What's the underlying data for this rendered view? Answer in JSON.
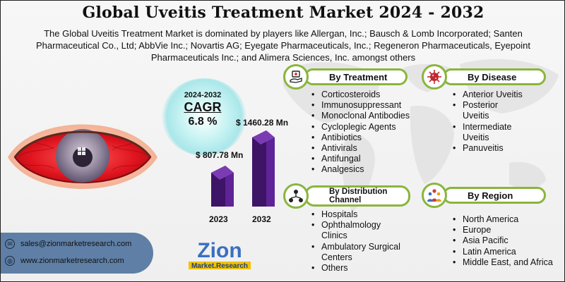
{
  "title": "Global Uveitis Treatment Market 2024 - 2032",
  "subtitle": "The Global Uveitis Treatment Market is dominated by players like Allergan, Inc.; Bausch & Lomb Incorporated; Santen Pharmaceutical Co., Ltd; AbbVie Inc.; Novartis AG; Eyegate Pharmaceuticals, Inc.; Regeneron Pharmaceuticals, Eyepoint Pharmaceuticals Inc.; and Alimera Sciences, Inc. amongst others",
  "cagr": {
    "years": "2024-2032",
    "label": "CAGR",
    "value": "6.8 %"
  },
  "market": {
    "value_2023": "$ 807.78 Mn",
    "value_2032": "$ 1460.28 Mn",
    "year_2023": "2023",
    "year_2032": "2032",
    "bar_colors": [
      "#4a1a7a",
      "#5e2396"
    ]
  },
  "contact": {
    "email": "sales@zionmarketresearch.com",
    "website": "www.zionmarketresearch.com"
  },
  "logo": {
    "line1": "Zion",
    "line2": "Market.Research"
  },
  "sections": {
    "treatment": {
      "title": "By Treatment",
      "items": [
        "Corticosteroids",
        "Immunosuppressant",
        "Monoclonal Antibodies",
        "Cycloplegic Agents",
        "Antibiotics",
        "Antivirals",
        "Antifungal",
        "Analgesics"
      ]
    },
    "disease": {
      "title": "By Disease",
      "items": [
        "Anterior Uveitis",
        "Posterior",
        "Uveitis",
        "Intermediate",
        "Uveitis",
        "Panuveitis"
      ]
    },
    "distribution": {
      "title_line1": "By Distribution",
      "title_line2": "Channel",
      "items": [
        "Hospitals",
        "Ophthalmology",
        "Clinics",
        "Ambulatory Surgical",
        "Centers",
        "Others"
      ]
    },
    "region": {
      "title": "By Region",
      "items": [
        "North America",
        "Europe",
        "Asia Pacific",
        "Latin America",
        "Middle East, and Africa"
      ]
    }
  },
  "colors": {
    "accent_green": "#8ab53c",
    "contact_bg": "#5f7fa6",
    "bar_purple": "#4a1a7a"
  },
  "icons": [
    "medicine-hand-icon",
    "virus-icon",
    "distribution-network-icon",
    "region-people-icon",
    "email-icon",
    "globe-icon"
  ]
}
